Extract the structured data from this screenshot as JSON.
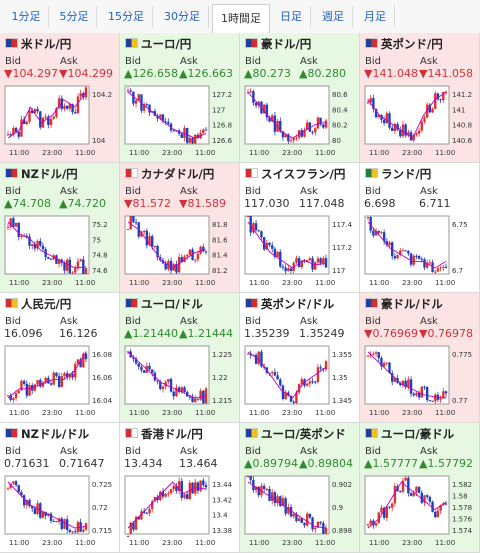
{
  "tabs": [
    {
      "label": "1分足",
      "active": false
    },
    {
      "label": "5分足",
      "active": false
    },
    {
      "label": "15分足",
      "active": false
    },
    {
      "label": "30分足",
      "active": false
    },
    {
      "label": "1時間足",
      "active": true
    },
    {
      "label": "日足",
      "active": false
    },
    {
      "label": "週足",
      "active": false
    },
    {
      "label": "月足",
      "active": false
    }
  ],
  "labels": {
    "bid": "Bid",
    "ask": "Ask"
  },
  "colors": {
    "up_bg": "#e6f7e2",
    "down_bg": "#fce4e4",
    "up_text": "#2e8b2e",
    "down_text": "#d0313a",
    "candle_up": "#e03030",
    "candle_down": "#1f3fbf",
    "ma": "#c000c0"
  },
  "pairs": [
    {
      "name": "米ドル/円",
      "dir": "down",
      "bid": "▼104.297",
      "ask": "▼104.299",
      "flag": [
        "#1f3f9f",
        "#d03030"
      ],
      "yticks": [
        "104.2",
        "104"
      ],
      "xticks": [
        "11:00",
        "23:00",
        "11:00"
      ],
      "trend": [
        104.0,
        104.05,
        104.2,
        104.1,
        104.15,
        104.25,
        104.2,
        104.3
      ]
    },
    {
      "name": "ユーロ/円",
      "dir": "up",
      "bid": "▲126.658",
      "ask": "▲126.663",
      "flag": [
        "#1f3f9f",
        "#f0c020"
      ],
      "yticks": [
        "127.2",
        "127",
        "126.8",
        "126.6"
      ],
      "xticks": [
        "11:00",
        "23:00",
        "11:00"
      ],
      "trend": [
        127.1,
        127.0,
        126.9,
        126.8,
        126.7,
        126.65,
        126.6,
        126.65
      ]
    },
    {
      "name": "豪ドル/円",
      "dir": "up",
      "bid": "▲80.273",
      "ask": "▲80.280",
      "flag": [
        "#1f3f9f",
        "#d03030"
      ],
      "yticks": [
        "80.6",
        "80.4",
        "80.2",
        "80"
      ],
      "xticks": [
        "11:00",
        "23:00",
        "11:00"
      ],
      "trend": [
        80.5,
        80.4,
        80.3,
        80.2,
        80.15,
        80.2,
        80.25,
        80.27
      ]
    },
    {
      "name": "英ポンド/円",
      "dir": "down",
      "bid": "▼141.048",
      "ask": "▼141.058",
      "flag": [
        "#1f3f9f",
        "#d03030"
      ],
      "yticks": [
        "141.2",
        "141",
        "140.8",
        "140.6"
      ],
      "xticks": [
        "11:00",
        "23:00",
        "11:00"
      ],
      "trend": [
        141.0,
        140.9,
        140.85,
        140.8,
        140.75,
        140.9,
        141.0,
        141.05
      ]
    },
    {
      "name": "NZドル/円",
      "dir": "up",
      "bid": "▲74.708",
      "ask": "▲74.720",
      "flag": [
        "#1f3f9f",
        "#d03030"
      ],
      "yticks": [
        "75.2",
        "75",
        "74.8",
        "74.6"
      ],
      "xticks": [
        "11:00",
        "23:00",
        "11:00"
      ],
      "trend": [
        75.1,
        75.0,
        74.95,
        74.85,
        74.8,
        74.75,
        74.7,
        74.71
      ]
    },
    {
      "name": "カナダドル/円",
      "dir": "down",
      "bid": "▼81.572",
      "ask": "▼81.589",
      "flag": [
        "#d03030",
        "#ffffff"
      ],
      "yticks": [
        "81.8",
        "81.6",
        "81.4",
        "81.2"
      ],
      "xticks": [
        "11:00",
        "23:00",
        "11:00"
      ],
      "trend": [
        81.75,
        81.7,
        81.6,
        81.5,
        81.45,
        81.5,
        81.55,
        81.57
      ]
    },
    {
      "name": "スイスフラン/円",
      "dir": "flat",
      "bid": "117.030",
      "ask": "117.048",
      "flag": [
        "#d03030",
        "#ffffff"
      ],
      "yticks": [
        "117.4",
        "117.2",
        "117"
      ],
      "xticks": [
        "11:00",
        "23:00",
        "11:00"
      ],
      "trend": [
        117.3,
        117.2,
        117.1,
        117.05,
        117.0,
        117.05,
        117.02,
        117.03
      ]
    },
    {
      "name": "ランド/円",
      "dir": "flat",
      "bid": "6.698",
      "ask": "6.711",
      "flag": [
        "#208040",
        "#f0c020"
      ],
      "yticks": [
        "6.75",
        "6.7"
      ],
      "xticks": [
        "11:00",
        "23:00",
        "11:00"
      ],
      "trend": [
        6.76,
        6.74,
        6.72,
        6.71,
        6.7,
        6.7,
        6.69,
        6.7
      ]
    },
    {
      "name": "人民元/円",
      "dir": "flat",
      "bid": "16.096",
      "ask": "16.126",
      "flag": [
        "#d03030",
        "#f0c020"
      ],
      "yticks": [
        "16.08",
        "16.06",
        "16.04"
      ],
      "xticks": [
        "11:00",
        "23:00",
        "11:00"
      ],
      "trend": [
        16.05,
        16.06,
        16.06,
        16.065,
        16.07,
        16.07,
        16.08,
        16.1
      ]
    },
    {
      "name": "ユーロ/ドル",
      "dir": "up",
      "bid": "▲1.21440",
      "ask": "▲1.21444",
      "flag": [
        "#1f3f9f",
        "#d03030"
      ],
      "yticks": [
        "1.225",
        "1.22",
        "1.215"
      ],
      "xticks": [
        "11:00",
        "23:00",
        "11:00"
      ],
      "trend": [
        1.223,
        1.221,
        1.219,
        1.217,
        1.216,
        1.215,
        1.214,
        1.2144
      ]
    },
    {
      "name": "英ポンド/ドル",
      "dir": "flat",
      "bid": "1.35239",
      "ask": "1.35249",
      "flag": [
        "#1f3f9f",
        "#d03030"
      ],
      "yticks": [
        "1.355",
        "1.35",
        "1.345"
      ],
      "xticks": [
        "11:00",
        "23:00",
        "11:00"
      ],
      "trend": [
        1.354,
        1.353,
        1.351,
        1.349,
        1.348,
        1.35,
        1.351,
        1.352
      ]
    },
    {
      "name": "豪ドル/ドル",
      "dir": "down",
      "bid": "▼0.76969",
      "ask": "▼0.76978",
      "flag": [
        "#1f3f9f",
        "#d03030"
      ],
      "yticks": [
        "0.775",
        "0.77"
      ],
      "xticks": [
        "11:00",
        "23:00",
        "11:00"
      ],
      "trend": [
        0.774,
        0.773,
        0.772,
        0.771,
        0.7705,
        0.77,
        0.7698,
        0.7697
      ]
    },
    {
      "name": "NZドル/ドル",
      "dir": "flat",
      "bid": "0.71631",
      "ask": "0.71647",
      "flag": [
        "#1f3f9f",
        "#d03030"
      ],
      "yticks": [
        "0.725",
        "0.72",
        "0.715"
      ],
      "xticks": [
        "11:00",
        "23:00",
        "11:00"
      ],
      "trend": [
        0.724,
        0.722,
        0.72,
        0.719,
        0.718,
        0.717,
        0.716,
        0.7163
      ]
    },
    {
      "name": "香港ドル/円",
      "dir": "flat",
      "bid": "13.434",
      "ask": "13.464",
      "flag": [
        "#d03030",
        "#ffffff"
      ],
      "yticks": [
        "13.44",
        "13.42",
        "13.4",
        "13.38"
      ],
      "xticks": [
        "11:00",
        "23:00",
        "11:00"
      ],
      "trend": [
        13.4,
        13.41,
        13.42,
        13.43,
        13.44,
        13.43,
        13.435,
        13.434
      ]
    },
    {
      "name": "ユーロ/英ポンド",
      "dir": "up",
      "bid": "▲0.89794",
      "ask": "▲0.89804",
      "flag": [
        "#1f3f9f",
        "#f0c020"
      ],
      "yticks": [
        "0.902",
        "0.9",
        "0.898"
      ],
      "xticks": [
        "11:00",
        "23:00",
        "11:00"
      ],
      "trend": [
        0.901,
        0.9005,
        0.9,
        0.8995,
        0.899,
        0.8985,
        0.898,
        0.8979
      ]
    },
    {
      "name": "ユーロ/豪ドル",
      "dir": "up",
      "bid": "▲1.57777",
      "ask": "▲1.57792",
      "flag": [
        "#1f3f9f",
        "#f0c020"
      ],
      "yticks": [
        "1.582",
        "1.58",
        "1.578",
        "1.576",
        "1.574"
      ],
      "xticks": [
        "11:00",
        "23:00",
        "11:00"
      ],
      "trend": [
        1.575,
        1.576,
        1.578,
        1.58,
        1.579,
        1.578,
        1.577,
        1.5778
      ]
    }
  ]
}
